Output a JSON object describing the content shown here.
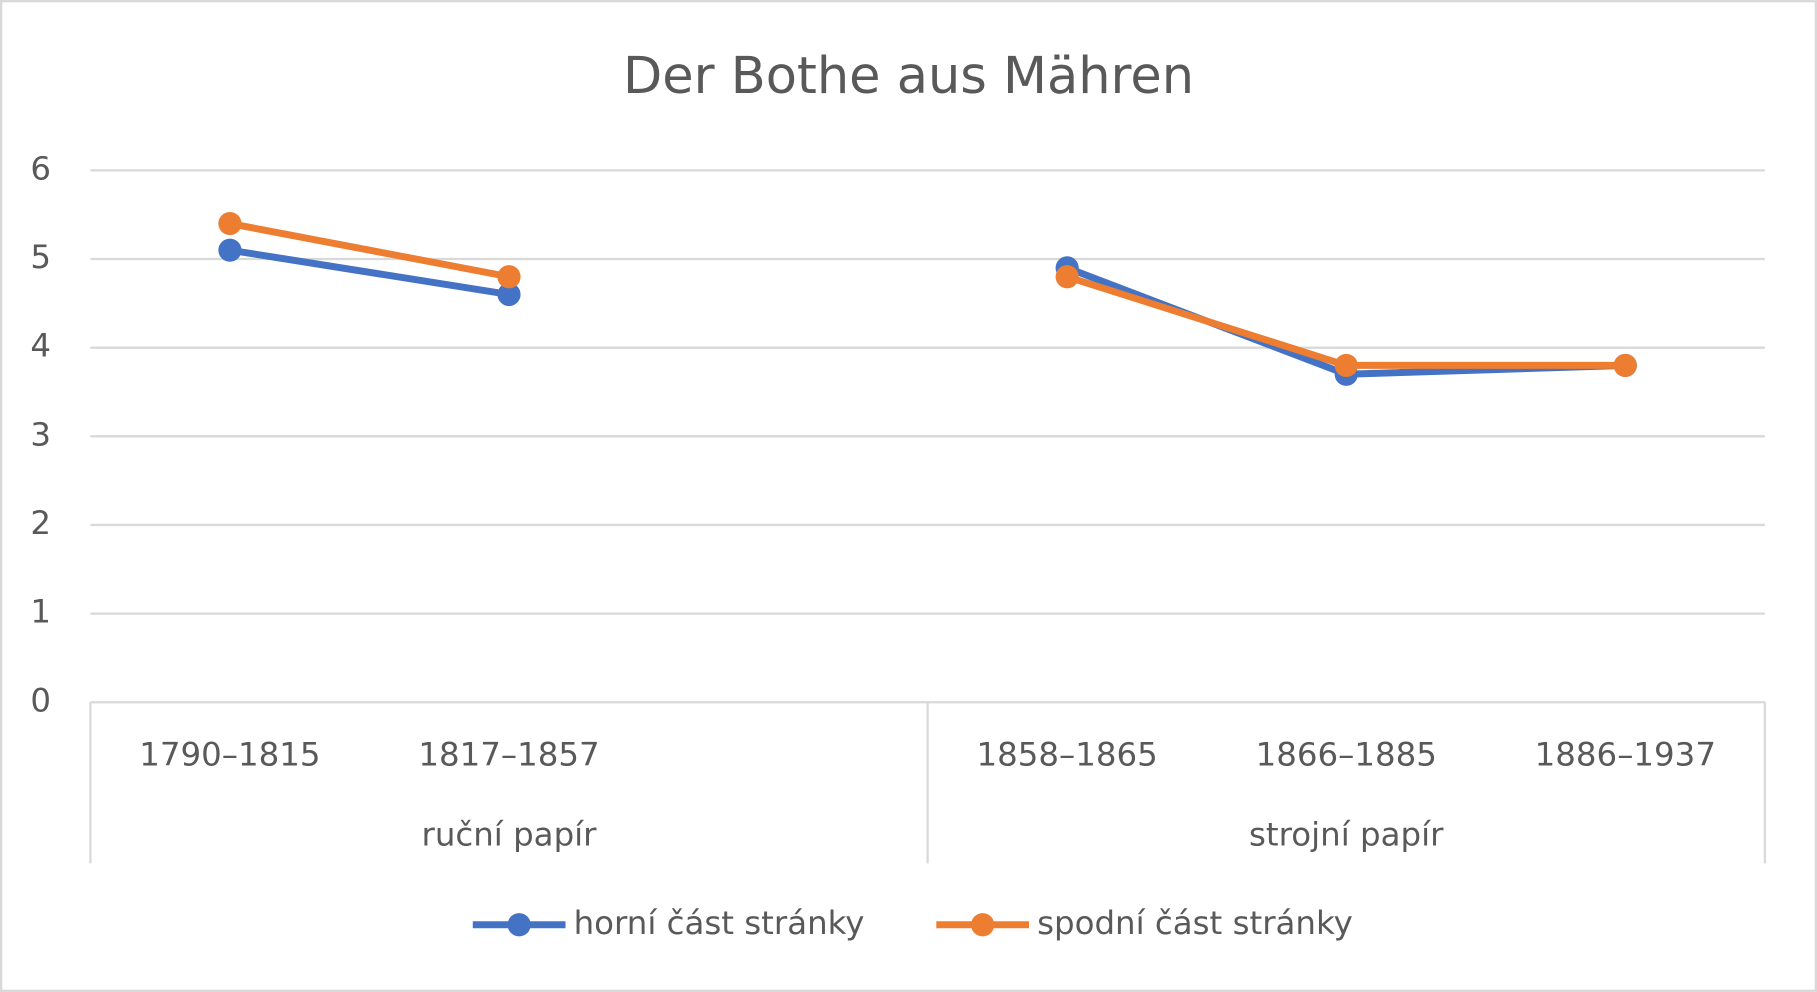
{
  "chart_data": {
    "type": "line",
    "title": "Der Bothe aus Mähren",
    "groups": [
      {
        "name": "ruční papír",
        "categories": [
          "1790–1815",
          "1817–1857",
          null
        ]
      },
      {
        "name": "strojní papír",
        "categories": [
          "1858–1865",
          "1866–1885",
          "1886–1937"
        ]
      }
    ],
    "series": [
      {
        "name": "horní část stránky",
        "color": "#4472c4",
        "values": [
          5.1,
          4.6,
          null,
          4.9,
          3.7,
          3.8
        ]
      },
      {
        "name": "spodní část stránky",
        "color": "#ed7d31",
        "values": [
          5.4,
          4.8,
          null,
          4.8,
          3.8,
          3.8
        ]
      }
    ],
    "ylim": [
      0,
      6
    ],
    "yticks": [
      0,
      1,
      2,
      3,
      4,
      5,
      6
    ],
    "grid": true,
    "legend": "bottom"
  }
}
